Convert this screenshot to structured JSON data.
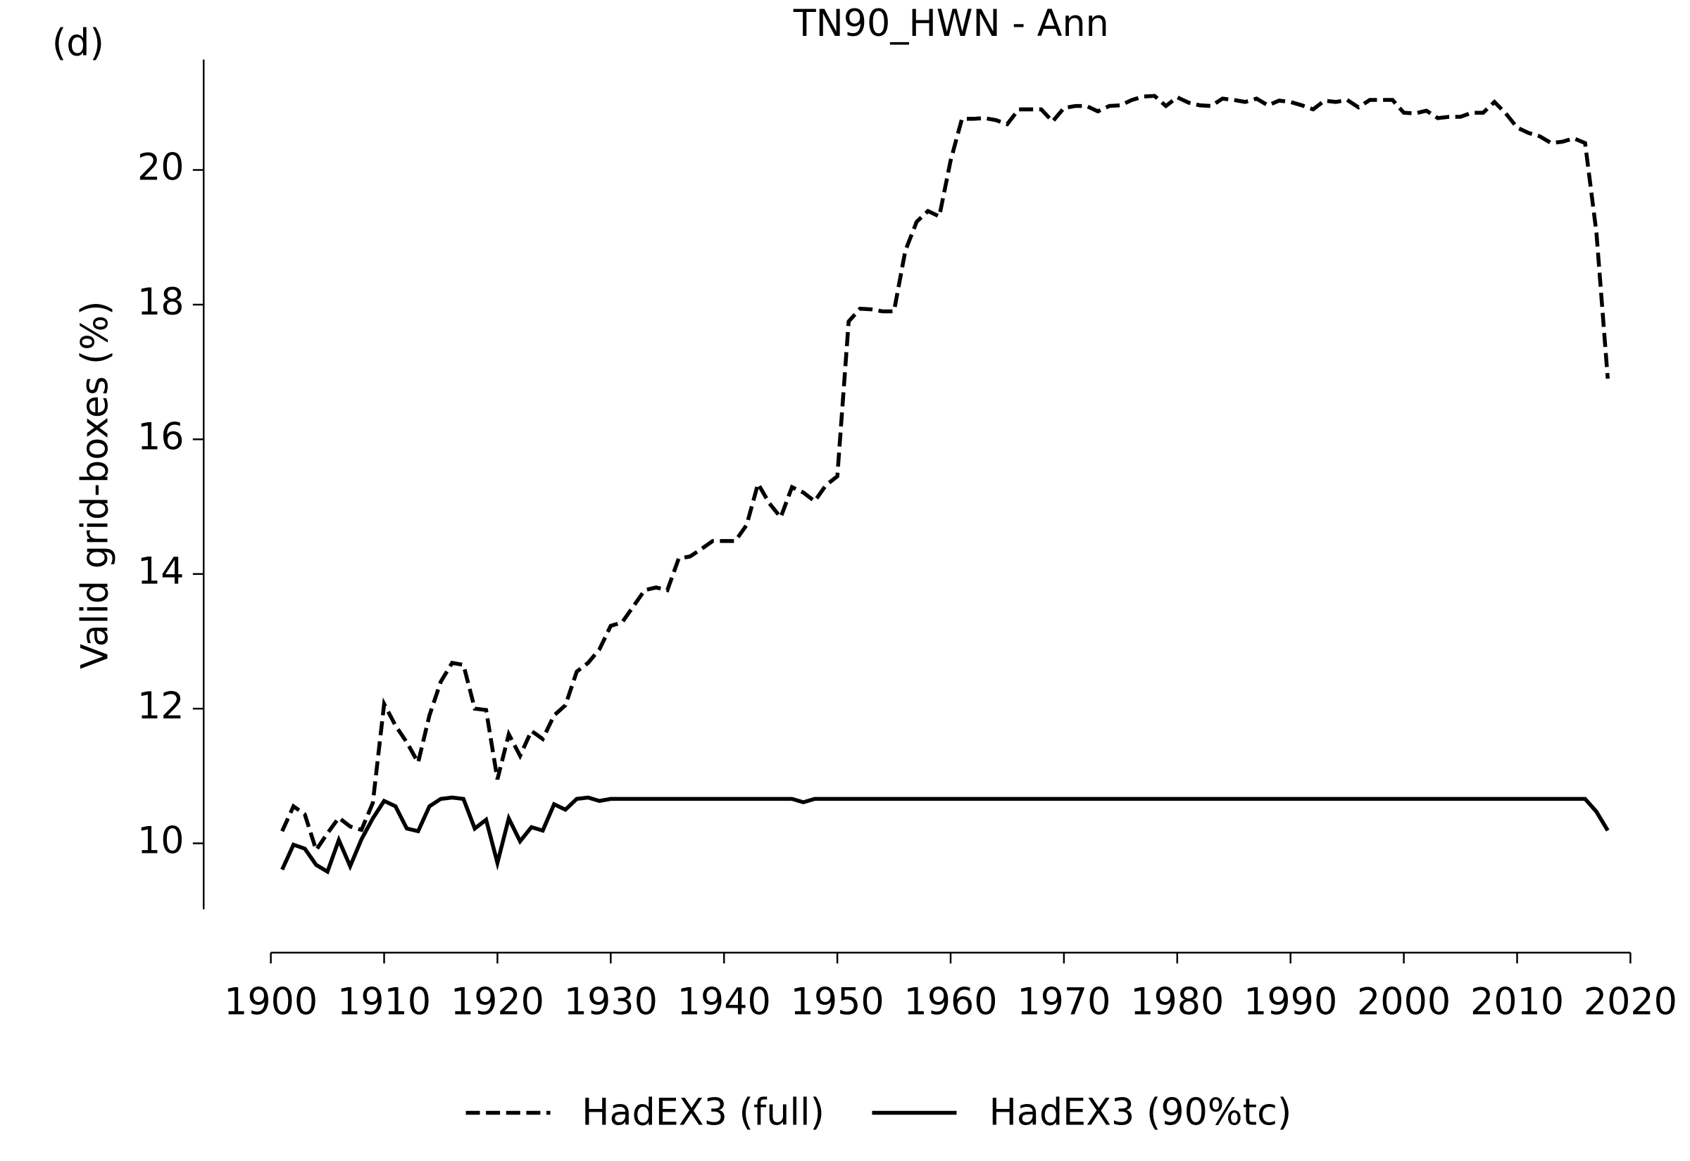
{
  "chart_data": {
    "type": "line",
    "title": "TN90_HWN - Ann",
    "panel_label": "(d)",
    "ylabel": "Valid grid-boxes (%)",
    "x": [
      1901,
      1902,
      1903,
      1904,
      1905,
      1906,
      1907,
      1908,
      1909,
      1910,
      1911,
      1912,
      1913,
      1914,
      1915,
      1916,
      1917,
      1918,
      1919,
      1920,
      1921,
      1922,
      1923,
      1924,
      1925,
      1926,
      1927,
      1928,
      1929,
      1930,
      1931,
      1932,
      1933,
      1934,
      1935,
      1936,
      1937,
      1938,
      1939,
      1940,
      1941,
      1942,
      1943,
      1944,
      1945,
      1946,
      1947,
      1948,
      1949,
      1950,
      1951,
      1952,
      1953,
      1954,
      1955,
      1956,
      1957,
      1958,
      1959,
      1960,
      1961,
      1962,
      1963,
      1964,
      1965,
      1966,
      1967,
      1968,
      1969,
      1970,
      1971,
      1972,
      1973,
      1974,
      1975,
      1976,
      1977,
      1978,
      1979,
      1980,
      1981,
      1982,
      1983,
      1984,
      1985,
      1986,
      1987,
      1988,
      1989,
      1990,
      1991,
      1992,
      1993,
      1994,
      1995,
      1996,
      1997,
      1998,
      1999,
      2000,
      2001,
      2002,
      2003,
      2004,
      2005,
      2006,
      2007,
      2008,
      2009,
      2010,
      2011,
      2012,
      2013,
      2014,
      2015,
      2016,
      2017,
      2018
    ],
    "series": [
      {
        "name": "HadEX3 (full)",
        "color": "#000000",
        "linestyle": "dashed",
        "values": [
          10.18,
          10.55,
          10.43,
          9.9,
          10.15,
          10.38,
          10.25,
          10.2,
          10.6,
          12.07,
          11.75,
          11.5,
          11.2,
          11.9,
          12.4,
          12.68,
          12.65,
          12.0,
          11.98,
          10.95,
          11.62,
          11.3,
          11.67,
          11.55,
          11.9,
          12.05,
          12.55,
          12.68,
          12.88,
          13.23,
          13.28,
          13.52,
          13.76,
          13.8,
          13.76,
          14.23,
          14.26,
          14.37,
          14.49,
          14.49,
          14.49,
          14.73,
          15.34,
          15.05,
          14.84,
          15.29,
          15.21,
          15.08,
          15.32,
          15.45,
          17.75,
          17.94,
          17.93,
          17.9,
          17.9,
          18.8,
          19.23,
          19.39,
          19.31,
          20.14,
          20.76,
          20.76,
          20.77,
          20.74,
          20.68,
          20.9,
          20.9,
          20.9,
          20.72,
          20.92,
          20.95,
          20.95,
          20.87,
          20.95,
          20.96,
          21.04,
          21.09,
          21.1,
          20.95,
          21.08,
          21.0,
          20.96,
          20.95,
          21.06,
          21.04,
          21.01,
          21.06,
          20.96,
          21.03,
          21.01,
          20.96,
          20.9,
          21.03,
          21.01,
          21.04,
          20.93,
          21.04,
          21.04,
          21.04,
          20.85,
          20.84,
          20.88,
          20.77,
          20.79,
          20.79,
          20.85,
          20.85,
          21.01,
          20.84,
          20.63,
          20.55,
          20.5,
          20.4,
          20.42,
          20.47,
          20.4,
          19.07,
          16.9
        ]
      },
      {
        "name": "HadEX3 (90%tc)",
        "color": "#000000",
        "linestyle": "solid",
        "values": [
          9.61,
          9.98,
          9.92,
          9.68,
          9.58,
          10.05,
          9.66,
          10.06,
          10.37,
          10.63,
          10.55,
          10.22,
          10.18,
          10.55,
          10.66,
          10.68,
          10.66,
          10.22,
          10.35,
          9.71,
          10.37,
          10.03,
          10.24,
          10.19,
          10.58,
          10.5,
          10.66,
          10.68,
          10.63,
          10.66,
          10.66,
          10.66,
          10.66,
          10.66,
          10.66,
          10.66,
          10.66,
          10.66,
          10.66,
          10.66,
          10.66,
          10.66,
          10.66,
          10.66,
          10.66,
          10.66,
          10.61,
          10.66,
          10.66,
          10.66,
          10.66,
          10.66,
          10.66,
          10.66,
          10.66,
          10.66,
          10.66,
          10.66,
          10.66,
          10.66,
          10.66,
          10.66,
          10.66,
          10.66,
          10.66,
          10.66,
          10.66,
          10.66,
          10.66,
          10.66,
          10.66,
          10.66,
          10.66,
          10.66,
          10.66,
          10.66,
          10.66,
          10.66,
          10.66,
          10.66,
          10.66,
          10.66,
          10.66,
          10.66,
          10.66,
          10.66,
          10.66,
          10.66,
          10.66,
          10.66,
          10.66,
          10.66,
          10.66,
          10.66,
          10.66,
          10.66,
          10.66,
          10.66,
          10.66,
          10.66,
          10.66,
          10.66,
          10.66,
          10.66,
          10.66,
          10.66,
          10.66,
          10.66,
          10.66,
          10.66,
          10.66,
          10.66,
          10.66,
          10.66,
          10.66,
          10.66,
          10.47,
          10.19
        ]
      }
    ],
    "xlim": [
      1900,
      2020
    ],
    "xticks": [
      1900,
      1910,
      1920,
      1930,
      1940,
      1950,
      1960,
      1970,
      1980,
      1990,
      2000,
      2010,
      2020
    ],
    "ylim": [
      9.02,
      21.64
    ],
    "yticks": [
      10,
      12,
      14,
      16,
      18,
      20
    ],
    "grid": false,
    "legend": "lower center"
  }
}
